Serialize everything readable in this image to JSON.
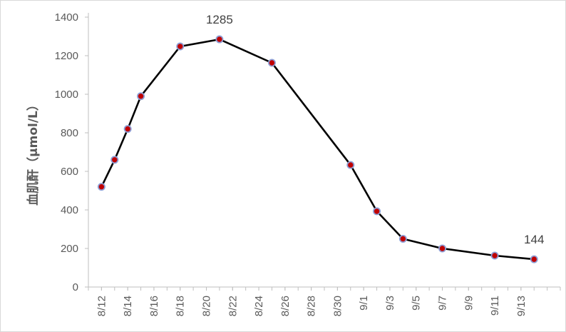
{
  "chart_data": {
    "type": "line",
    "title": "",
    "xlabel": "",
    "ylabel": "血肌酐（μmol/L）",
    "ylim": [
      0,
      1400
    ],
    "y_ticks": [
      0,
      200,
      400,
      600,
      800,
      1000,
      1200,
      1400
    ],
    "x_tick_labels": [
      "8/12",
      "8/14",
      "8/16",
      "8/18",
      "8/20",
      "8/22",
      "8/24",
      "8/26",
      "8/28",
      "8/30",
      "9/1",
      "9/3",
      "9/5",
      "9/7",
      "9/9",
      "9/11",
      "9/13"
    ],
    "grid": false,
    "legend": "none",
    "series": [
      {
        "line_color": "#000000",
        "marker_fill": "#c00000",
        "marker_edge": "#8e9fd6",
        "points": [
          {
            "x": "8/12",
            "y": 520
          },
          {
            "x": "8/13",
            "y": 660
          },
          {
            "x": "8/14",
            "y": 820
          },
          {
            "x": "8/15",
            "y": 990
          },
          {
            "x": "8/18",
            "y": 1248
          },
          {
            "x": "8/21",
            "y": 1285,
            "label": "1285"
          },
          {
            "x": "8/25",
            "y": 1163
          },
          {
            "x": "8/31",
            "y": 633
          },
          {
            "x": "9/2",
            "y": 393
          },
          {
            "x": "9/4",
            "y": 250
          },
          {
            "x": "9/7",
            "y": 200
          },
          {
            "x": "9/11",
            "y": 163
          },
          {
            "x": "9/14",
            "y": 144,
            "label": "144"
          }
        ]
      }
    ]
  }
}
